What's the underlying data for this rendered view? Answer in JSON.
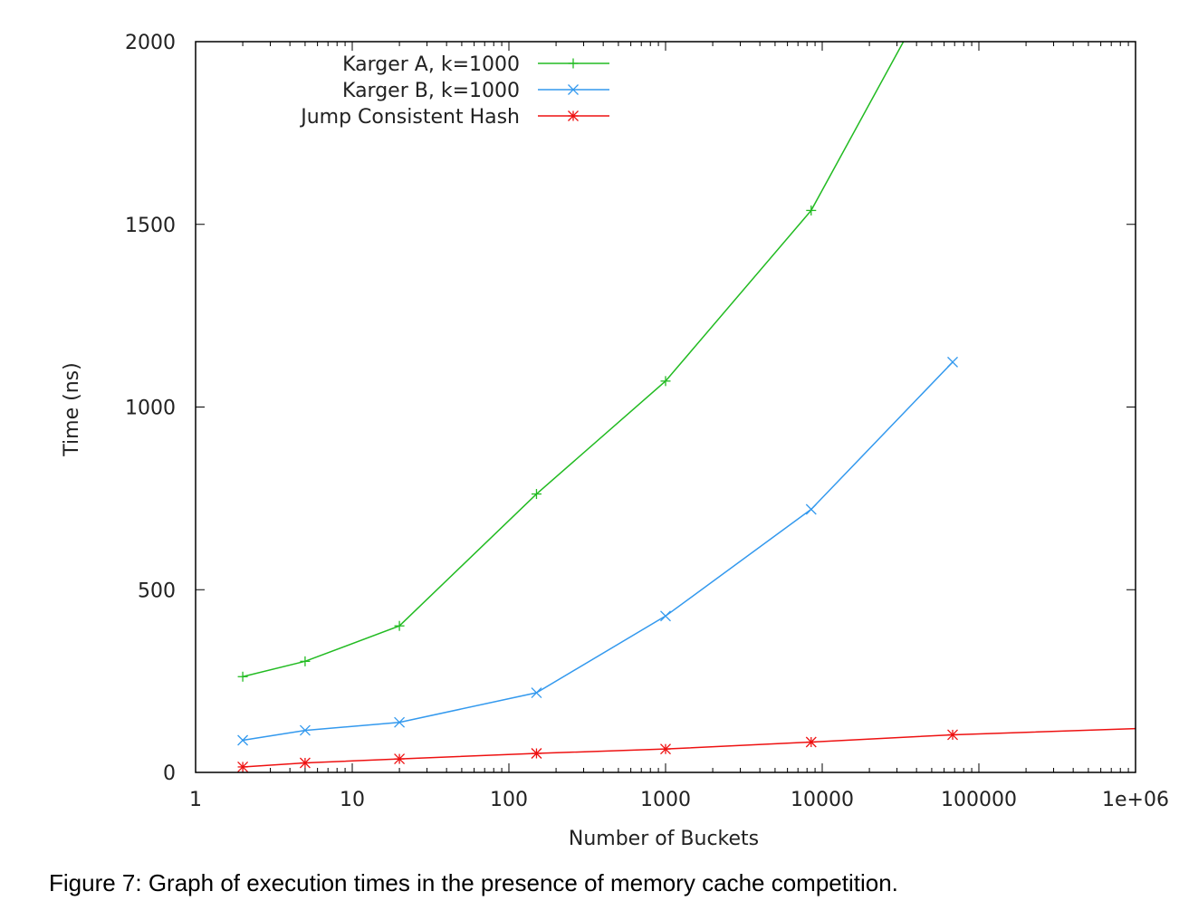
{
  "caption": "Figure 7: Graph of execution times in the presence of memory cache competition.",
  "chart_data": {
    "type": "line",
    "title": "",
    "xlabel": "Number of Buckets",
    "ylabel": "Time (ns)",
    "xscale": "log",
    "xlim": [
      1,
      1000000
    ],
    "ylim": [
      0,
      2000
    ],
    "xticks": [
      {
        "value": 1,
        "label": "1"
      },
      {
        "value": 10,
        "label": "10"
      },
      {
        "value": 100,
        "label": "100"
      },
      {
        "value": 1000,
        "label": "1000"
      },
      {
        "value": 10000,
        "label": "10000"
      },
      {
        "value": 100000,
        "label": "100000"
      },
      {
        "value": 1000000,
        "label": "1e+06"
      }
    ],
    "yticks": [
      {
        "value": 0,
        "label": "0"
      },
      {
        "value": 500,
        "label": "500"
      },
      {
        "value": 1000,
        "label": "1000"
      },
      {
        "value": 1500,
        "label": "1500"
      },
      {
        "value": 2000,
        "label": "2000"
      }
    ],
    "grid": false,
    "legend_position": "top-left",
    "series": [
      {
        "name": "Karger A, k=1000",
        "color": "#22bb22",
        "marker": "plus",
        "x": [
          2,
          5,
          20,
          150,
          1000,
          8500,
          33000
        ],
        "y": [
          262,
          304,
          401,
          762,
          1071,
          1538,
          2000
        ]
      },
      {
        "name": "Karger B, k=1000",
        "color": "#3399ee",
        "marker": "cross",
        "x": [
          2,
          5,
          20,
          150,
          1000,
          8500,
          68000
        ],
        "y": [
          88,
          115,
          137,
          218,
          428,
          720,
          1123
        ]
      },
      {
        "name": "Jump Consistent Hash",
        "color": "#ee1111",
        "marker": "star",
        "x": [
          2,
          5,
          20,
          150,
          1000,
          8500,
          68000,
          1000000
        ],
        "y": [
          15,
          26,
          37,
          52,
          64,
          83,
          103,
          120
        ]
      }
    ]
  }
}
